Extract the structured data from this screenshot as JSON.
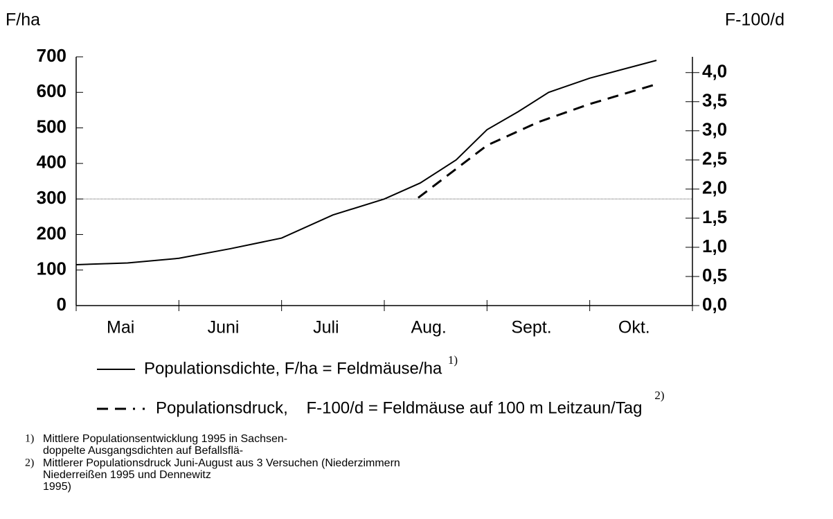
{
  "chart_data": {
    "type": "line",
    "y_label": "F/ha",
    "y2_label": "F-100/d",
    "categories": [
      "Mai",
      "Juni",
      "Juli",
      "Aug.",
      "Sept.",
      "Okt."
    ],
    "xlim": [
      0,
      6
    ],
    "ylim": [
      0,
      700
    ],
    "yticks": [
      0,
      100,
      200,
      300,
      400,
      500,
      600,
      700
    ],
    "y2lim": [
      0,
      4.27
    ],
    "y2ticks": [
      {
        "value": 0,
        "label": "0,0"
      },
      {
        "value": 0.5,
        "label": "0,5"
      },
      {
        "value": 1,
        "label": "1,0"
      },
      {
        "value": 1.5,
        "label": "1,5"
      },
      {
        "value": 2,
        "label": "2,0"
      },
      {
        "value": 2.5,
        "label": "2,5"
      },
      {
        "value": 3,
        "label": "3,0"
      },
      {
        "value": 3.5,
        "label": "3,5"
      },
      {
        "value": 4,
        "label": "4,0"
      }
    ],
    "reference_line": 300,
    "series": [
      {
        "name": "Populationsdichte, F/ha = Feldmäuse/ha",
        "note": "1)",
        "color": "#000000",
        "dash": false,
        "x": [
          0,
          0.5,
          1,
          1.5,
          2,
          2.5,
          3,
          3.35,
          3.7,
          4,
          4.3,
          4.6,
          5,
          5.65
        ],
        "values": [
          115,
          120,
          133,
          160,
          190,
          255,
          300,
          345,
          410,
          495,
          545,
          600,
          640,
          690
        ]
      },
      {
        "name": "Populationsdruck,    F-100/d = Feldmäuse auf 100 m Leitzaun/Tag",
        "note": "2)",
        "color": "#000000",
        "dash": true,
        "axis": "y2",
        "x": [
          3.33,
          4,
          4.5,
          5,
          5.65
        ],
        "values": [
          1.85,
          2.75,
          3.15,
          3.46,
          3.8
        ]
      }
    ],
    "footnotes": [
      {
        "number": "1)",
        "lines": [
          "Mittlere Populationsentwicklung 1995 in Sachsen-",
          "doppelte Ausgangsdichten auf Befallsflä-"
        ]
      },
      {
        "number": "2)",
        "lines": [
          "Mittlerer Populationsdruck Juni-August aus 3 Versuchen (Niederzimmern",
          "Niederreißen 1995 und Dennewitz",
          "1995)"
        ]
      }
    ]
  }
}
